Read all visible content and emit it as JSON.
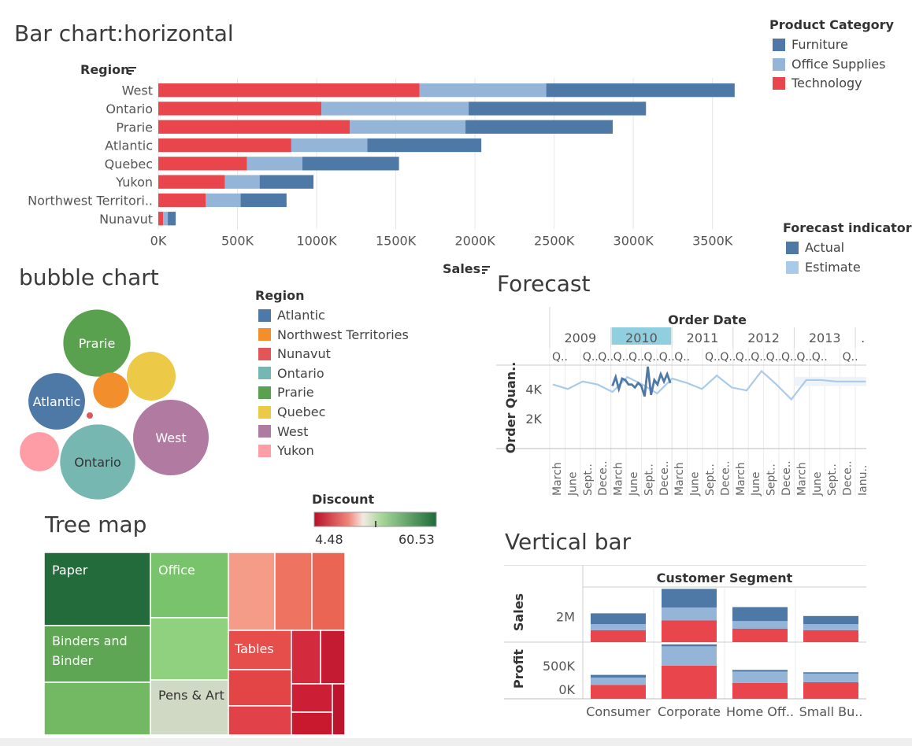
{
  "colors": {
    "furniture": "#4e79a7",
    "office_supplies": "#95b5d8",
    "technology": "#e8454d",
    "actual": "#4e79a7",
    "estimate": "#a9cbe8",
    "grid": "#e6e6e6"
  },
  "sort_icon": "sort-icon",
  "hbar": {
    "title": "Bar chart:horizontal",
    "region_label": "Region",
    "sales_label": "Sales",
    "legend_title": "Product Category",
    "legend": [
      "Furniture",
      "Office Supplies",
      "Technology"
    ],
    "tick_labels": [
      "0K",
      "500K",
      "1000K",
      "1500K",
      "2000K",
      "2500K",
      "3000K",
      "3500K"
    ]
  },
  "forecast_legend": {
    "title": "Forecast indicator",
    "items": [
      "Actual",
      "Estimate"
    ]
  },
  "bubble": {
    "title": "bubble chart",
    "legend_title": "Region",
    "legend": [
      "Atlantic",
      "Northwest Territories",
      "Nunavut",
      "Ontario",
      "Prarie",
      "Quebec",
      "West",
      "Yukon"
    ],
    "legend_colors": [
      "#4e79a7",
      "#f28e2b",
      "#e15759",
      "#76b7b2",
      "#59a14f",
      "#edc948",
      "#b07aa1",
      "#ff9da7"
    ]
  },
  "forecast": {
    "title": "Forecast",
    "header": "Order Date",
    "years": [
      "2009",
      "2010",
      "2011",
      "2012",
      "2013",
      "."
    ],
    "ylabel": "Order Quan..",
    "yticks": [
      "4K",
      "2K"
    ],
    "quarter_label": "Q..",
    "month_labels": [
      "March",
      "June",
      "Sept..",
      "Dece..",
      "March",
      "June",
      "Sept..",
      "Dece..",
      "March",
      "June",
      "Sept..",
      "Dece..",
      "March",
      "June",
      "Sept..",
      "Dece..",
      "March",
      "June",
      "Sept..",
      "Dece..",
      "Janu.."
    ]
  },
  "discount_legend": {
    "title": "Discount",
    "min": "4.48",
    "max": "60.53"
  },
  "treemap": {
    "title": "Tree map",
    "labels": [
      "Paper",
      "Binders and Binder",
      "Office",
      "Pens & Art",
      "Tables"
    ]
  },
  "vbar": {
    "title": "Vertical bar",
    "header": "Customer Segment",
    "row_labels": [
      "Sales",
      "Profit"
    ],
    "sales_tick": "2M",
    "profit_ticks": [
      "500K",
      "0K"
    ],
    "segments": [
      "Consumer",
      "Corporate",
      "Home Off..",
      "Small Bu.."
    ]
  },
  "chart_data": [
    {
      "type": "bar",
      "orientation": "horizontal",
      "stacked": true,
      "title": "Bar chart:horizontal",
      "xlabel": "Sales",
      "ylabel": "Region",
      "xlim": [
        0,
        3800000
      ],
      "categories": [
        "West",
        "Ontario",
        "Prarie",
        "Atlantic",
        "Quebec",
        "Yukon",
        "Northwest Territori..",
        "Nunavut"
      ],
      "series": [
        {
          "name": "Technology",
          "values": [
            1650000,
            1030000,
            1210000,
            840000,
            560000,
            420000,
            300000,
            30000
          ]
        },
        {
          "name": "Office Supplies",
          "values": [
            800000,
            930000,
            730000,
            480000,
            350000,
            220000,
            220000,
            30000
          ]
        },
        {
          "name": "Furniture",
          "values": [
            1190000,
            1120000,
            930000,
            720000,
            610000,
            340000,
            290000,
            50000
          ]
        }
      ]
    },
    {
      "type": "scatter",
      "title": "bubble chart",
      "size_field": "Sales",
      "bubbles": [
        {
          "region": "Prarie",
          "label": "Prarie",
          "size": 2870000
        },
        {
          "region": "Atlantic",
          "label": "Atlantic",
          "size": 2040000
        },
        {
          "region": "Ontario",
          "label": "Ontario",
          "size": 3080000
        },
        {
          "region": "West",
          "label": "West",
          "size": 3640000
        },
        {
          "region": "Quebec",
          "label": "",
          "size": 1520000
        },
        {
          "region": "Northwest Territories",
          "label": "",
          "size": 810000
        },
        {
          "region": "Yukon",
          "label": "",
          "size": 980000
        },
        {
          "region": "Nunavut",
          "label": "",
          "size": 110000
        }
      ]
    },
    {
      "type": "line",
      "title": "Forecast",
      "xlabel": "Order Date",
      "ylabel": "Order Quan..",
      "ylim": [
        0,
        5600
      ],
      "series": [
        {
          "name": "Actual",
          "highlighted_year": "2010",
          "values": [
            4200,
            4800,
            4000,
            4700,
            4600,
            4300,
            4300,
            4100,
            4400,
            4200,
            3500,
            5500,
            3600,
            4600,
            4300,
            5000,
            4500,
            5000,
            4400
          ]
        },
        {
          "name": "Estimate",
          "values": [
            4300,
            4000,
            4500,
            4300,
            3800,
            4800,
            4300,
            3700,
            4700,
            4400,
            4000,
            4900,
            4100,
            3900,
            5200,
            4300,
            3300,
            4600,
            4600,
            4500,
            4500,
            4500
          ]
        }
      ]
    },
    {
      "type": "heatmap",
      "title": "Tree map",
      "color_field": "Discount",
      "color_range": [
        4.48,
        60.53
      ],
      "labeled_tiles": [
        "Paper",
        "Binders and Binder",
        "Office",
        "Pens & Art",
        "Tables"
      ]
    },
    {
      "type": "bar",
      "orientation": "vertical",
      "stacked": true,
      "title": "Vertical bar",
      "categories": [
        "Consumer",
        "Corporate",
        "Home Off..",
        "Small Bu.."
      ],
      "panels": [
        {
          "measure": "Sales",
          "series": [
            {
              "name": "Technology",
              "values": [
                940000,
                1700000,
                1050000,
                940000
              ]
            },
            {
              "name": "Office Supplies",
              "values": [
                470000,
                1020000,
                600000,
                470000
              ]
            },
            {
              "name": "Furniture",
              "values": [
                850000,
                1460000,
                1100000,
                640000
              ]
            }
          ]
        },
        {
          "measure": "Profit",
          "series": [
            {
              "name": "Technology",
              "values": [
                210000,
                500000,
                240000,
                250000
              ]
            },
            {
              "name": "Office Supplies",
              "values": [
                110000,
                290000,
                170000,
                130000
              ]
            },
            {
              "name": "Furniture",
              "values": [
                40000,
                30000,
                25000,
                20000
              ]
            }
          ]
        }
      ]
    }
  ]
}
